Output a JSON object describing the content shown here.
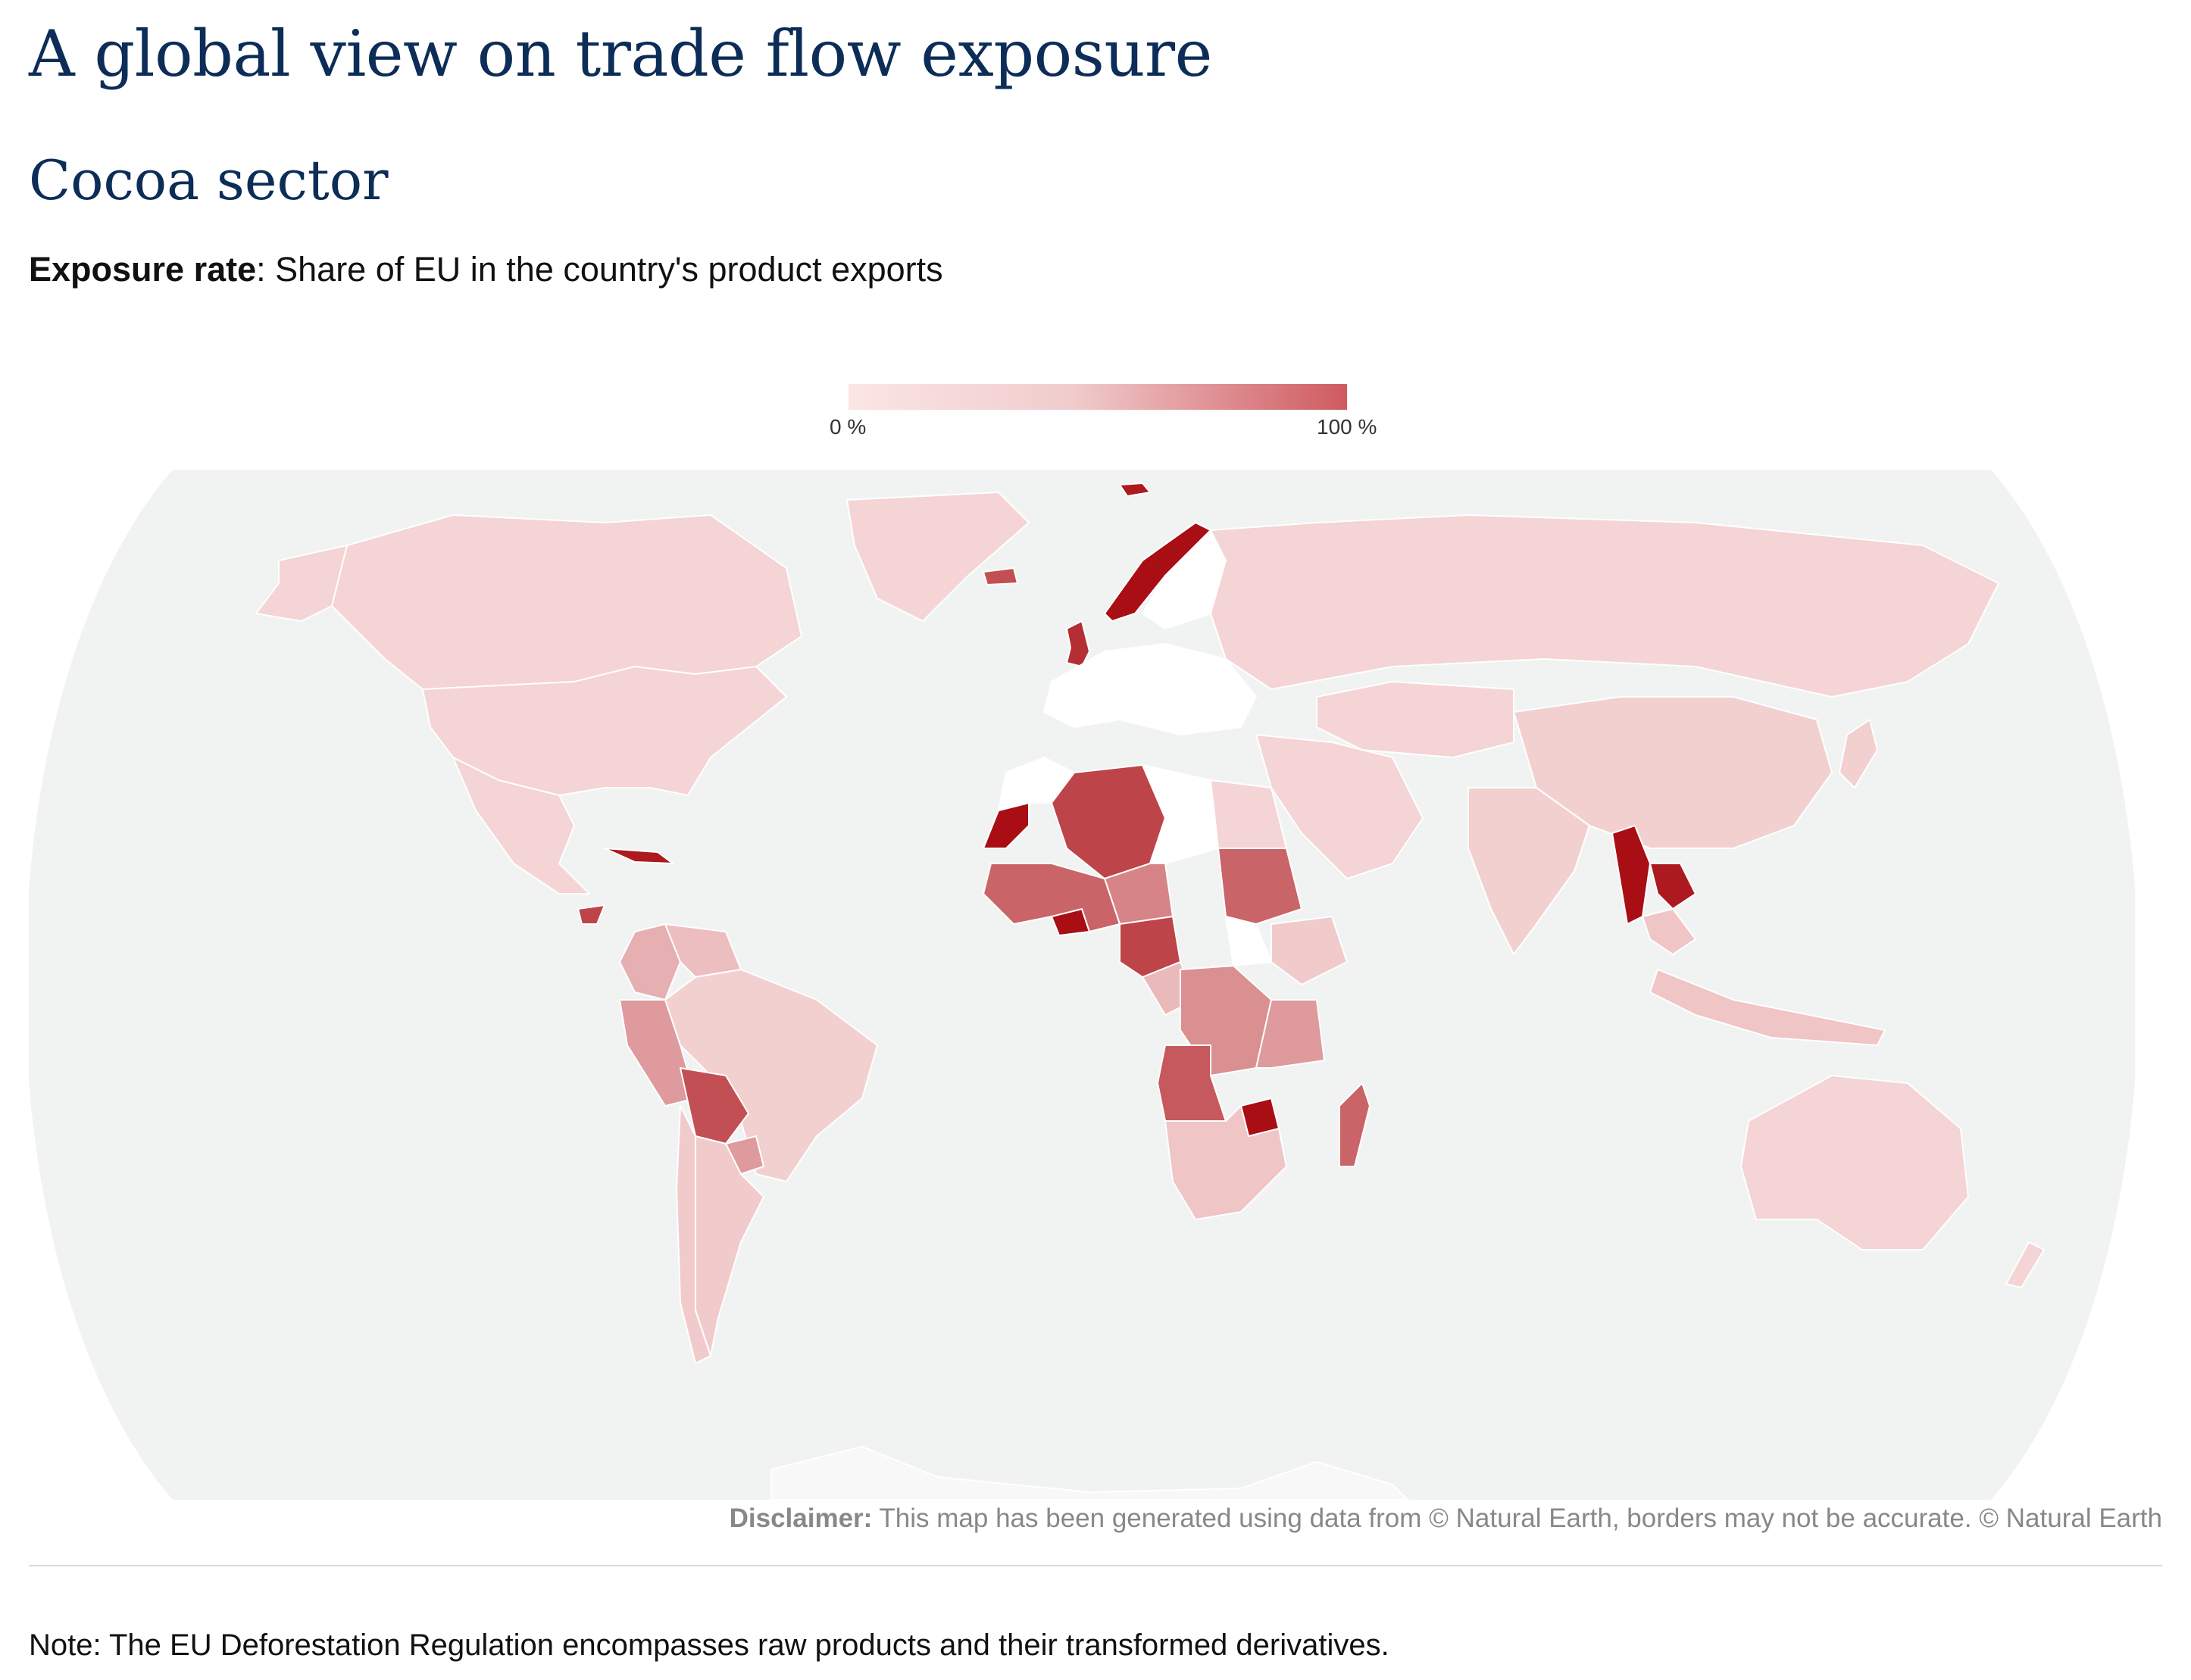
{
  "header": {
    "title": "A global view on trade flow exposure",
    "subtitle": "Cocoa sector",
    "description_label": "Exposure rate",
    "description_text": ": Share of EU in the country's product exports"
  },
  "legend": {
    "min_label": "0 %",
    "max_label": "100 %",
    "color_low": "#fbe5e5",
    "color_high": "#cf5a60"
  },
  "map": {
    "background_color": "#f1f2f2",
    "no_data_color": "#ffffff",
    "countries": [
      {
        "name": "Canada",
        "exposure": 0.08
      },
      {
        "name": "United States",
        "exposure": 0.08
      },
      {
        "name": "Mexico",
        "exposure": 0.08
      },
      {
        "name": "Greenland",
        "exposure": 0.08
      },
      {
        "name": "Cuba",
        "exposure": 0.95
      },
      {
        "name": "Honduras",
        "exposure": 0.75
      },
      {
        "name": "Colombia",
        "exposure": 0.25
      },
      {
        "name": "Venezuela",
        "exposure": 0.18
      },
      {
        "name": "Peru",
        "exposure": 0.35
      },
      {
        "name": "Brazil",
        "exposure": 0.1
      },
      {
        "name": "Bolivia",
        "exposure": 0.7
      },
      {
        "name": "Paraguay",
        "exposure": 0.35
      },
      {
        "name": "Argentina",
        "exposure": 0.12
      },
      {
        "name": "Chile",
        "exposure": 0.12
      },
      {
        "name": "Iceland",
        "exposure": 0.7
      },
      {
        "name": "Norway",
        "exposure": 1.0
      },
      {
        "name": "Svalbard",
        "exposure": 0.95
      },
      {
        "name": "United Kingdom",
        "exposure": 0.85
      },
      {
        "name": "Russia",
        "exposure": 0.08
      },
      {
        "name": "Western Sahara",
        "exposure": 1.0
      },
      {
        "name": "Algeria",
        "exposure": 0.75
      },
      {
        "name": "Libya",
        "exposure": null
      },
      {
        "name": "Egypt",
        "exposure": 0.08
      },
      {
        "name": "Niger",
        "exposure": 0.45
      },
      {
        "name": "Burkina Faso",
        "exposure": 1.0
      },
      {
        "name": "Nigeria",
        "exposure": 0.6
      },
      {
        "name": "Cameroon",
        "exposure": 0.75
      },
      {
        "name": "Sudan",
        "exposure": 0.2
      },
      {
        "name": "South Sudan",
        "exposure": null
      },
      {
        "name": "Ethiopia",
        "exposure": 0.12
      },
      {
        "name": "DR Congo",
        "exposure": 0.4
      },
      {
        "name": "Angola",
        "exposure": 0.65
      },
      {
        "name": "Tanzania",
        "exposure": 0.35
      },
      {
        "name": "Zimbabwe",
        "exposure": 1.0
      },
      {
        "name": "South Africa",
        "exposure": 0.15
      },
      {
        "name": "Madagascar",
        "exposure": 0.6
      },
      {
        "name": "Myanmar",
        "exposure": 1.0
      },
      {
        "name": "Laos",
        "exposure": 0.95
      },
      {
        "name": "China",
        "exposure": 0.1
      },
      {
        "name": "India",
        "exposure": 0.1
      },
      {
        "name": "Indonesia",
        "exposure": 0.15
      },
      {
        "name": "Australia",
        "exposure": 0.08
      },
      {
        "name": "New Zealand",
        "exposure": 0.08
      }
    ]
  },
  "disclaimer": {
    "label": "Disclaimer:",
    "text": " This map has been generated using data from © Natural Earth, borders may not be accurate. © Natural Earth"
  },
  "footer": {
    "note": "Note: The EU Deforestation Regulation encompasses raw products and their transformed derivatives."
  }
}
